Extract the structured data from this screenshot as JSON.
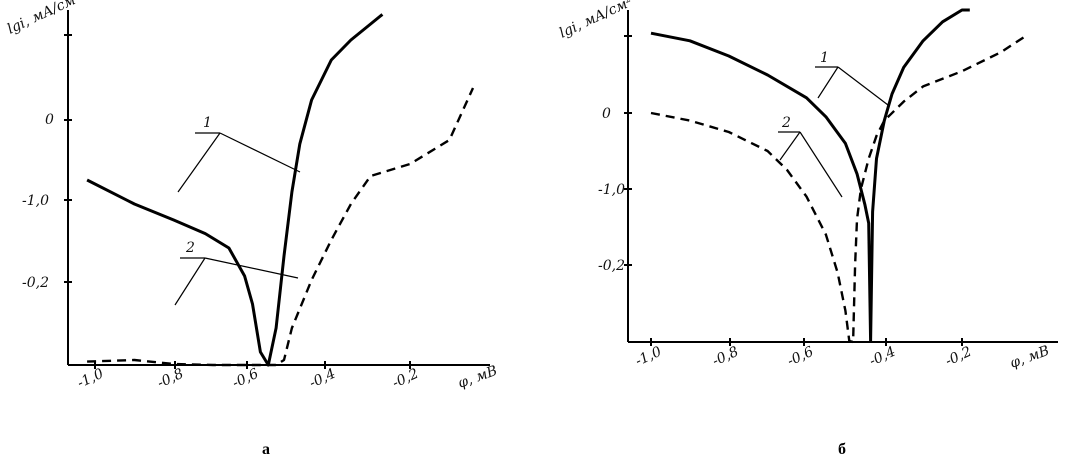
{
  "chart_data": [
    {
      "panel_label": "а",
      "type": "line",
      "ylabel": "lgi, мА/см²",
      "xlabel": "φ, мВ",
      "x_ticks": [
        "-1,0",
        "-0,8",
        "-0,6",
        "-0,4",
        "-0,2"
      ],
      "y_ticks": [
        "0",
        "-1,0",
        "-0,2"
      ],
      "series": [
        {
          "name": "1",
          "style": "solid",
          "x": [
            -1.02,
            -0.9,
            -0.8,
            -0.72,
            -0.66,
            -0.62,
            -0.6,
            -0.58,
            -0.56,
            -0.54,
            -0.52,
            -0.5,
            -0.48,
            -0.45,
            -0.4,
            -0.35,
            -0.3,
            -0.27
          ],
          "y": [
            -0.75,
            -1.05,
            -1.25,
            -1.42,
            -1.6,
            -1.95,
            -2.3,
            -2.9,
            -3.6,
            -2.6,
            -1.7,
            -0.9,
            -0.3,
            0.25,
            0.75,
            1.0,
            1.2,
            1.32
          ]
        },
        {
          "name": "2",
          "style": "dashed",
          "x": [
            -1.02,
            -0.9,
            -0.8,
            -0.7,
            -0.65,
            -0.62,
            -0.6,
            -0.58,
            -0.56,
            -0.54,
            -0.52,
            -0.5,
            -0.45,
            -0.4,
            -0.35,
            -0.3,
            -0.2,
            -0.1,
            -0.04
          ],
          "y": [
            -3.02,
            -3.0,
            -3.05,
            -3.07,
            -3.12,
            -3.25,
            -3.4,
            -3.55,
            -3.6,
            -3.35,
            -3.0,
            -2.6,
            -2.0,
            -1.5,
            -1.05,
            -0.7,
            -0.55,
            -0.25,
            0.4
          ]
        }
      ]
    },
    {
      "panel_label": "б",
      "type": "line",
      "ylabel": "lgi, мА/см²",
      "xlabel": "φ, мВ",
      "x_ticks": [
        "-1,0",
        "-0,8",
        "-0,6",
        "-0,4",
        "-0,2"
      ],
      "y_ticks": [
        "0",
        "-1,0",
        "-0,2"
      ],
      "series": [
        {
          "name": "1",
          "style": "solid",
          "x": [
            -1.0,
            -0.9,
            -0.8,
            -0.7,
            -0.6,
            -0.55,
            -0.5,
            -0.47,
            -0.45,
            -0.44,
            -0.435,
            -0.43,
            -0.42,
            -0.4,
            -0.38,
            -0.35,
            -0.3,
            -0.25,
            -0.2,
            -0.18
          ],
          "y": [
            1.05,
            0.95,
            0.75,
            0.5,
            0.2,
            -0.05,
            -0.4,
            -0.8,
            -1.2,
            -1.45,
            -3.0,
            -1.3,
            -0.6,
            -0.1,
            0.25,
            0.6,
            0.95,
            1.2,
            1.4,
            1.45
          ]
        },
        {
          "name": "2",
          "style": "dashed",
          "x": [
            -1.0,
            -0.9,
            -0.8,
            -0.7,
            -0.65,
            -0.6,
            -0.55,
            -0.52,
            -0.5,
            -0.49,
            -0.48,
            -0.475,
            -0.47,
            -0.46,
            -0.44,
            -0.42,
            -0.4,
            -0.35,
            -0.3,
            -0.2,
            -0.1,
            -0.04
          ],
          "y": [
            0.0,
            -0.1,
            -0.25,
            -0.5,
            -0.75,
            -1.1,
            -1.6,
            -2.1,
            -2.6,
            -3.0,
            -3.1,
            -2.0,
            -1.4,
            -1.0,
            -0.6,
            -0.3,
            -0.1,
            0.15,
            0.35,
            0.55,
            0.8,
            1.0
          ]
        }
      ]
    }
  ]
}
